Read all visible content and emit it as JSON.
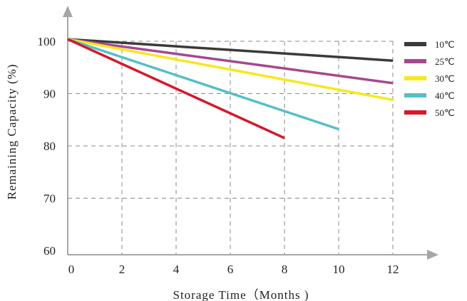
{
  "chart_data": {
    "type": "line",
    "title": "",
    "xlabel": "Storage Time（Months )",
    "ylabel": "Remaining Capacity (%)",
    "xlim": [
      0,
      12
    ],
    "ylim": [
      60,
      100
    ],
    "xticks": [
      "0",
      "2",
      "4",
      "6",
      "8",
      "10",
      "12"
    ],
    "yticks": [
      "60",
      "70",
      "80",
      "90",
      "100"
    ],
    "grid": "dashed",
    "legend_position": "right",
    "series": [
      {
        "name": "10℃",
        "color": "#3d3a36",
        "x": [
          0,
          12
        ],
        "y": [
          100.4,
          96.3
        ]
      },
      {
        "name": "25℃",
        "color": "#a8468f",
        "x": [
          0,
          12
        ],
        "y": [
          100.4,
          92.0
        ]
      },
      {
        "name": "30℃",
        "color": "#f7e81e",
        "x": [
          0,
          12
        ],
        "y": [
          100.4,
          88.8
        ]
      },
      {
        "name": "40℃",
        "color": "#55bfc7",
        "x": [
          0,
          10
        ],
        "y": [
          100.4,
          83.2
        ]
      },
      {
        "name": "50℃",
        "color": "#d6182a",
        "x": [
          0,
          8
        ],
        "y": [
          100.4,
          81.5
        ]
      }
    ]
  }
}
